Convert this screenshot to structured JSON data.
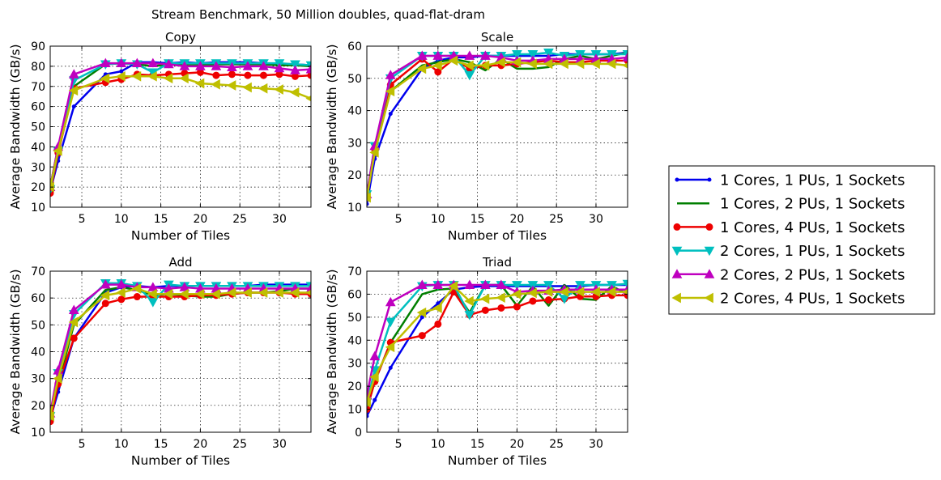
{
  "figure_title": "Stream Benchmark, 50 Million doubles, quad-flat-dram",
  "series_style": [
    {
      "name": "1 Cores, 1 PUs, 1 Sockets",
      "color": "#0000ee",
      "marker": "point"
    },
    {
      "name": "1 Cores, 2 PUs, 1 Sockets",
      "color": "#007f00",
      "marker": "none"
    },
    {
      "name": "1 Cores, 4 PUs, 1 Sockets",
      "color": "#ee0000",
      "marker": "circle"
    },
    {
      "name": "2 Cores, 1 PUs, 1 Sockets",
      "color": "#00bfbf",
      "marker": "triangle-down"
    },
    {
      "name": "2 Cores, 2 PUs, 1 Sockets",
      "color": "#bf00bf",
      "marker": "triangle-up"
    },
    {
      "name": "2 Cores, 4 PUs, 1 Sockets",
      "color": "#bfbf00",
      "marker": "triangle-left"
    }
  ],
  "chart_data": [
    {
      "type": "line",
      "title": "Copy",
      "xlabel": "Number of Tiles",
      "ylabel": "Average Bandwidth (GB/s)",
      "xlim": [
        1,
        34
      ],
      "ylim": [
        10,
        90
      ],
      "xticks": [
        5,
        10,
        15,
        20,
        25,
        30
      ],
      "yticks": [
        10,
        20,
        30,
        40,
        50,
        60,
        70,
        80,
        90
      ],
      "grid": true,
      "x": [
        1,
        2,
        4,
        8,
        10,
        12,
        14,
        16,
        18,
        20,
        22,
        24,
        26,
        28,
        30,
        32,
        34
      ],
      "series": [
        {
          "name": "1 Cores, 1 PUs, 1 Sockets",
          "values": [
            18,
            33,
            60,
            76,
            77.5,
            82,
            82,
            81.5,
            82,
            81.5,
            82,
            82,
            82,
            81.5,
            81,
            81,
            80.5
          ]
        },
        {
          "name": "1 Cores, 2 PUs, 1 Sockets",
          "values": [
            20,
            40,
            70,
            81,
            81.5,
            81,
            80,
            81,
            80.5,
            80.5,
            81,
            81,
            81,
            81,
            80.5,
            80.5,
            80
          ]
        },
        {
          "name": "1 Cores, 4 PUs, 1 Sockets",
          "values": [
            17,
            37,
            69,
            72,
            73.5,
            76,
            75.5,
            76,
            76.5,
            77,
            75.5,
            76,
            75.5,
            75.5,
            76,
            75,
            75.5
          ]
        },
        {
          "name": "2 Cores, 1 PUs, 1 Sockets",
          "values": [
            19,
            38,
            73,
            81,
            81.5,
            81,
            77,
            81.5,
            81.5,
            81.5,
            81.5,
            81.5,
            81.5,
            81.5,
            81.5,
            81,
            80.5
          ]
        },
        {
          "name": "2 Cores, 2 PUs, 1 Sockets",
          "values": [
            20,
            40,
            76,
            81.5,
            81.5,
            81.5,
            81.5,
            81,
            80,
            80,
            80,
            79.5,
            80,
            80,
            79,
            78,
            78.5
          ]
        },
        {
          "name": "2 Cores, 4 PUs, 1 Sockets",
          "values": [
            20,
            38,
            68,
            74,
            75,
            75,
            75,
            74,
            74,
            71.5,
            71,
            70.5,
            69.5,
            69,
            68.5,
            67,
            64
          ]
        }
      ]
    },
    {
      "type": "line",
      "title": "Scale",
      "xlabel": "Number of Tiles",
      "ylabel": "Average Bandwidth (GB/s)",
      "xlim": [
        1,
        34
      ],
      "ylim": [
        10,
        60
      ],
      "xticks": [
        5,
        10,
        15,
        20,
        25,
        30
      ],
      "yticks": [
        10,
        20,
        30,
        40,
        50,
        60
      ],
      "grid": true,
      "x": [
        1,
        2,
        4,
        8,
        10,
        12,
        14,
        16,
        18,
        20,
        22,
        24,
        26,
        28,
        30,
        32,
        34
      ],
      "series": [
        {
          "name": "1 Cores, 1 PUs, 1 Sockets",
          "values": [
            11,
            25,
            39,
            53,
            55.5,
            56.5,
            56.5,
            57,
            57,
            57,
            57,
            57,
            57.5,
            57.5,
            57.5,
            57.5,
            58
          ]
        },
        {
          "name": "1 Cores, 2 PUs, 1 Sockets",
          "values": [
            13,
            28,
            46,
            54,
            55,
            56,
            55,
            52.5,
            56,
            53,
            53,
            53.5,
            56,
            57,
            56,
            57,
            58
          ]
        },
        {
          "name": "1 Cores, 4 PUs, 1 Sockets",
          "values": [
            13,
            28,
            48,
            56,
            52,
            56,
            53,
            54,
            54,
            54.5,
            55,
            55.5,
            55,
            55,
            55.5,
            55.5,
            55.5
          ]
        },
        {
          "name": "2 Cores, 1 PUs, 1 Sockets",
          "values": [
            14,
            29,
            50,
            57,
            57,
            57,
            51,
            57,
            57,
            57.5,
            57.5,
            58,
            57,
            57.5,
            57.5,
            57.5,
            57.5
          ]
        },
        {
          "name": "2 Cores, 2 PUs, 1 Sockets",
          "values": [
            14,
            29,
            51,
            57,
            57,
            57,
            57,
            57,
            56.5,
            55.5,
            55.5,
            56,
            56,
            56,
            56,
            56,
            56.5
          ]
        },
        {
          "name": "2 Cores, 4 PUs, 1 Sockets",
          "values": [
            13,
            27,
            46,
            53,
            54,
            55.5,
            54,
            54,
            55,
            55,
            54.5,
            54.5,
            54.5,
            54.5,
            54.5,
            54.5,
            54
          ]
        }
      ]
    },
    {
      "type": "line",
      "title": "Add",
      "xlabel": "Number of Tiles",
      "ylabel": "Average Bandwidth (GB/s)",
      "xlim": [
        1,
        34
      ],
      "ylim": [
        10,
        70
      ],
      "xticks": [
        5,
        10,
        15,
        20,
        25,
        30
      ],
      "yticks": [
        10,
        20,
        30,
        40,
        50,
        60,
        70
      ],
      "grid": true,
      "x": [
        1,
        2,
        4,
        8,
        10,
        12,
        14,
        16,
        18,
        20,
        22,
        24,
        26,
        28,
        30,
        32,
        34
      ],
      "series": [
        {
          "name": "1 Cores, 1 PUs, 1 Sockets",
          "values": [
            15,
            25,
            45,
            62,
            64,
            64.5,
            64,
            64.5,
            64.5,
            64.5,
            64.5,
            64.5,
            64.5,
            65,
            65,
            65,
            65
          ]
        },
        {
          "name": "1 Cores, 2 PUs, 1 Sockets",
          "values": [
            15,
            28,
            50,
            63,
            64,
            63,
            61,
            61.5,
            61,
            60.5,
            60.5,
            61.5,
            62,
            62,
            62.5,
            63.5,
            63.5
          ]
        },
        {
          "name": "1 Cores, 4 PUs, 1 Sockets",
          "values": [
            14,
            28,
            45,
            58,
            59.5,
            60.5,
            60.5,
            60.5,
            60.5,
            61,
            61,
            61.5,
            62,
            62,
            62,
            61.5,
            61.5
          ]
        },
        {
          "name": "2 Cores, 1 PUs, 1 Sockets",
          "values": [
            16,
            32,
            54,
            65.5,
            65.5,
            64.5,
            58.5,
            65,
            64.5,
            64.5,
            64.5,
            64.5,
            64.5,
            64.5,
            64.5,
            64.5,
            64.5
          ]
        },
        {
          "name": "2 Cores, 2 PUs, 1 Sockets",
          "values": [
            17,
            33,
            55.5,
            65,
            65,
            64,
            64,
            63.5,
            64,
            63.5,
            63.5,
            63.5,
            63.5,
            63.5,
            63.5,
            63.5,
            63.5
          ]
        },
        {
          "name": "2 Cores, 4 PUs, 1 Sockets",
          "values": [
            16,
            30,
            51,
            61,
            62,
            63.5,
            61.5,
            61.5,
            61.5,
            61.5,
            61.5,
            62,
            62,
            62,
            62,
            62,
            62
          ]
        }
      ]
    },
    {
      "type": "line",
      "title": "Triad",
      "xlabel": "Number of Tiles",
      "ylabel": "Average Bandwidth (GB/s)",
      "xlim": [
        1,
        34
      ],
      "ylim": [
        0,
        70
      ],
      "xticks": [
        5,
        10,
        15,
        20,
        25,
        30
      ],
      "yticks": [
        0,
        10,
        20,
        30,
        40,
        50,
        60,
        70
      ],
      "grid": true,
      "x": [
        1,
        2,
        4,
        8,
        10,
        12,
        14,
        16,
        18,
        20,
        22,
        24,
        26,
        28,
        30,
        32,
        34
      ],
      "series": [
        {
          "name": "1 Cores, 1 PUs, 1 Sockets",
          "values": [
            7,
            14,
            28,
            50,
            56,
            62,
            63,
            63.5,
            63.5,
            63.5,
            63.5,
            63.5,
            63.5,
            63.5,
            64,
            64,
            64
          ]
        },
        {
          "name": "1 Cores, 2 PUs, 1 Sockets",
          "values": [
            10,
            22,
            39,
            60,
            62,
            62.5,
            52,
            64,
            64,
            55,
            63.5,
            55,
            64,
            58,
            57.5,
            63.5,
            60
          ]
        },
        {
          "name": "1 Cores, 4 PUs, 1 Sockets",
          "values": [
            10,
            22,
            39,
            42,
            47,
            61,
            51,
            53,
            54,
            54.5,
            57,
            57.5,
            58,
            59,
            59,
            59.5,
            59.5
          ]
        },
        {
          "name": "2 Cores, 1 PUs, 1 Sockets",
          "values": [
            13,
            27,
            48,
            63.5,
            64,
            64,
            51,
            64,
            64,
            64,
            64,
            64,
            58,
            64,
            64,
            64,
            64.5
          ]
        },
        {
          "name": "2 Cores, 2 PUs, 1 Sockets",
          "values": [
            16,
            33,
            56.5,
            64,
            64,
            64,
            64,
            64,
            64,
            61,
            61.5,
            61.5,
            62,
            62,
            62,
            62,
            62
          ]
        },
        {
          "name": "2 Cores, 4 PUs, 1 Sockets",
          "values": [
            13,
            24,
            37,
            52,
            54,
            63.5,
            57,
            58,
            58.5,
            60,
            60.5,
            61,
            61,
            61,
            61,
            61,
            61
          ]
        }
      ]
    }
  ]
}
